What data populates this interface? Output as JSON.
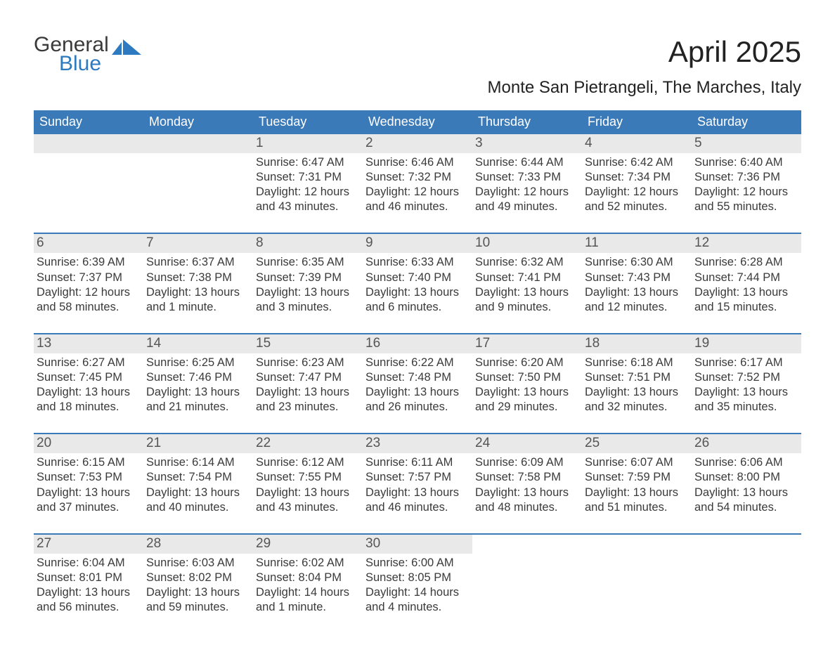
{
  "logo": {
    "word1": "General",
    "word2": "Blue",
    "icon_color": "#2d7ac0",
    "text_color_1": "#3a3a3a",
    "text_color_2": "#2d7ac0"
  },
  "title": "April 2025",
  "subtitle": "Monte San Pietrangeli, The Marches, Italy",
  "colors": {
    "header_bg": "#3b7ab8",
    "header_text": "#ffffff",
    "daynum_bg": "#e9e9e9",
    "daynum_text": "#555555",
    "body_text": "#3a3a3a",
    "week_border": "#3b7ab8",
    "page_bg": "#ffffff"
  },
  "typography": {
    "title_fontsize": 42,
    "subtitle_fontsize": 24,
    "dow_fontsize": 18,
    "daynum_fontsize": 19,
    "info_fontsize": 16.5
  },
  "layout": {
    "columns": 7,
    "rows": 5,
    "week_gap": 22,
    "week_border_width": 2
  },
  "days_of_week": [
    "Sunday",
    "Monday",
    "Tuesday",
    "Wednesday",
    "Thursday",
    "Friday",
    "Saturday"
  ],
  "weeks": [
    [
      {
        "blank": true
      },
      {
        "blank": true
      },
      {
        "n": "1",
        "sunrise": "Sunrise: 6:47 AM",
        "sunset": "Sunset: 7:31 PM",
        "dl1": "Daylight: 12 hours",
        "dl2": "and 43 minutes."
      },
      {
        "n": "2",
        "sunrise": "Sunrise: 6:46 AM",
        "sunset": "Sunset: 7:32 PM",
        "dl1": "Daylight: 12 hours",
        "dl2": "and 46 minutes."
      },
      {
        "n": "3",
        "sunrise": "Sunrise: 6:44 AM",
        "sunset": "Sunset: 7:33 PM",
        "dl1": "Daylight: 12 hours",
        "dl2": "and 49 minutes."
      },
      {
        "n": "4",
        "sunrise": "Sunrise: 6:42 AM",
        "sunset": "Sunset: 7:34 PM",
        "dl1": "Daylight: 12 hours",
        "dl2": "and 52 minutes."
      },
      {
        "n": "5",
        "sunrise": "Sunrise: 6:40 AM",
        "sunset": "Sunset: 7:36 PM",
        "dl1": "Daylight: 12 hours",
        "dl2": "and 55 minutes."
      }
    ],
    [
      {
        "n": "6",
        "sunrise": "Sunrise: 6:39 AM",
        "sunset": "Sunset: 7:37 PM",
        "dl1": "Daylight: 12 hours",
        "dl2": "and 58 minutes."
      },
      {
        "n": "7",
        "sunrise": "Sunrise: 6:37 AM",
        "sunset": "Sunset: 7:38 PM",
        "dl1": "Daylight: 13 hours",
        "dl2": "and 1 minute."
      },
      {
        "n": "8",
        "sunrise": "Sunrise: 6:35 AM",
        "sunset": "Sunset: 7:39 PM",
        "dl1": "Daylight: 13 hours",
        "dl2": "and 3 minutes."
      },
      {
        "n": "9",
        "sunrise": "Sunrise: 6:33 AM",
        "sunset": "Sunset: 7:40 PM",
        "dl1": "Daylight: 13 hours",
        "dl2": "and 6 minutes."
      },
      {
        "n": "10",
        "sunrise": "Sunrise: 6:32 AM",
        "sunset": "Sunset: 7:41 PM",
        "dl1": "Daylight: 13 hours",
        "dl2": "and 9 minutes."
      },
      {
        "n": "11",
        "sunrise": "Sunrise: 6:30 AM",
        "sunset": "Sunset: 7:43 PM",
        "dl1": "Daylight: 13 hours",
        "dl2": "and 12 minutes."
      },
      {
        "n": "12",
        "sunrise": "Sunrise: 6:28 AM",
        "sunset": "Sunset: 7:44 PM",
        "dl1": "Daylight: 13 hours",
        "dl2": "and 15 minutes."
      }
    ],
    [
      {
        "n": "13",
        "sunrise": "Sunrise: 6:27 AM",
        "sunset": "Sunset: 7:45 PM",
        "dl1": "Daylight: 13 hours",
        "dl2": "and 18 minutes."
      },
      {
        "n": "14",
        "sunrise": "Sunrise: 6:25 AM",
        "sunset": "Sunset: 7:46 PM",
        "dl1": "Daylight: 13 hours",
        "dl2": "and 21 minutes."
      },
      {
        "n": "15",
        "sunrise": "Sunrise: 6:23 AM",
        "sunset": "Sunset: 7:47 PM",
        "dl1": "Daylight: 13 hours",
        "dl2": "and 23 minutes."
      },
      {
        "n": "16",
        "sunrise": "Sunrise: 6:22 AM",
        "sunset": "Sunset: 7:48 PM",
        "dl1": "Daylight: 13 hours",
        "dl2": "and 26 minutes."
      },
      {
        "n": "17",
        "sunrise": "Sunrise: 6:20 AM",
        "sunset": "Sunset: 7:50 PM",
        "dl1": "Daylight: 13 hours",
        "dl2": "and 29 minutes."
      },
      {
        "n": "18",
        "sunrise": "Sunrise: 6:18 AM",
        "sunset": "Sunset: 7:51 PM",
        "dl1": "Daylight: 13 hours",
        "dl2": "and 32 minutes."
      },
      {
        "n": "19",
        "sunrise": "Sunrise: 6:17 AM",
        "sunset": "Sunset: 7:52 PM",
        "dl1": "Daylight: 13 hours",
        "dl2": "and 35 minutes."
      }
    ],
    [
      {
        "n": "20",
        "sunrise": "Sunrise: 6:15 AM",
        "sunset": "Sunset: 7:53 PM",
        "dl1": "Daylight: 13 hours",
        "dl2": "and 37 minutes."
      },
      {
        "n": "21",
        "sunrise": "Sunrise: 6:14 AM",
        "sunset": "Sunset: 7:54 PM",
        "dl1": "Daylight: 13 hours",
        "dl2": "and 40 minutes."
      },
      {
        "n": "22",
        "sunrise": "Sunrise: 6:12 AM",
        "sunset": "Sunset: 7:55 PM",
        "dl1": "Daylight: 13 hours",
        "dl2": "and 43 minutes."
      },
      {
        "n": "23",
        "sunrise": "Sunrise: 6:11 AM",
        "sunset": "Sunset: 7:57 PM",
        "dl1": "Daylight: 13 hours",
        "dl2": "and 46 minutes."
      },
      {
        "n": "24",
        "sunrise": "Sunrise: 6:09 AM",
        "sunset": "Sunset: 7:58 PM",
        "dl1": "Daylight: 13 hours",
        "dl2": "and 48 minutes."
      },
      {
        "n": "25",
        "sunrise": "Sunrise: 6:07 AM",
        "sunset": "Sunset: 7:59 PM",
        "dl1": "Daylight: 13 hours",
        "dl2": "and 51 minutes."
      },
      {
        "n": "26",
        "sunrise": "Sunrise: 6:06 AM",
        "sunset": "Sunset: 8:00 PM",
        "dl1": "Daylight: 13 hours",
        "dl2": "and 54 minutes."
      }
    ],
    [
      {
        "n": "27",
        "sunrise": "Sunrise: 6:04 AM",
        "sunset": "Sunset: 8:01 PM",
        "dl1": "Daylight: 13 hours",
        "dl2": "and 56 minutes."
      },
      {
        "n": "28",
        "sunrise": "Sunrise: 6:03 AM",
        "sunset": "Sunset: 8:02 PM",
        "dl1": "Daylight: 13 hours",
        "dl2": "and 59 minutes."
      },
      {
        "n": "29",
        "sunrise": "Sunrise: 6:02 AM",
        "sunset": "Sunset: 8:04 PM",
        "dl1": "Daylight: 14 hours",
        "dl2": "and 1 minute."
      },
      {
        "n": "30",
        "sunrise": "Sunrise: 6:00 AM",
        "sunset": "Sunset: 8:05 PM",
        "dl1": "Daylight: 14 hours",
        "dl2": "and 4 minutes."
      },
      {
        "blank": true
      },
      {
        "blank": true
      },
      {
        "blank": true
      }
    ]
  ]
}
